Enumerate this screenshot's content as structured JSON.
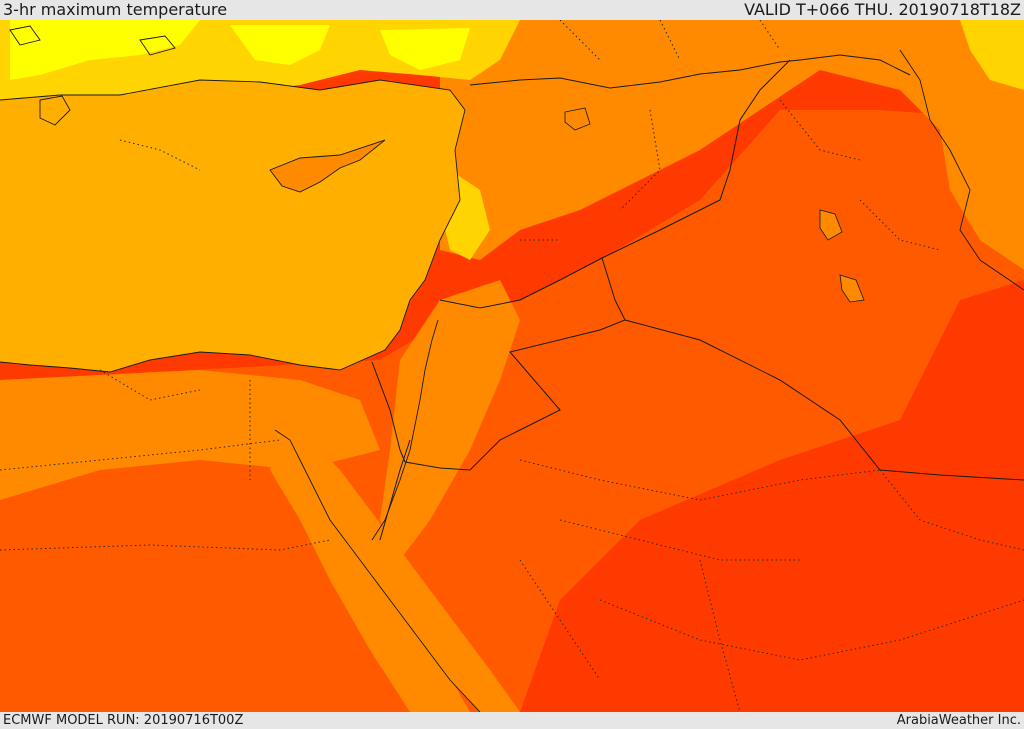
{
  "header": {
    "title": "3-hr maximum temperature",
    "valid": "VALID T+066 THU. 20190718T18Z"
  },
  "footer": {
    "model_run": "ECMWF MODEL RUN: 20190716T00Z",
    "credit": "ArabiaWeather Inc."
  },
  "colors": {
    "sea": "#ffaf00",
    "cool": "#ffff00",
    "mild": "#ffd400",
    "warm": "#ff8a00",
    "hot": "#ff5a00",
    "very_hot": "#ff2a00"
  }
}
